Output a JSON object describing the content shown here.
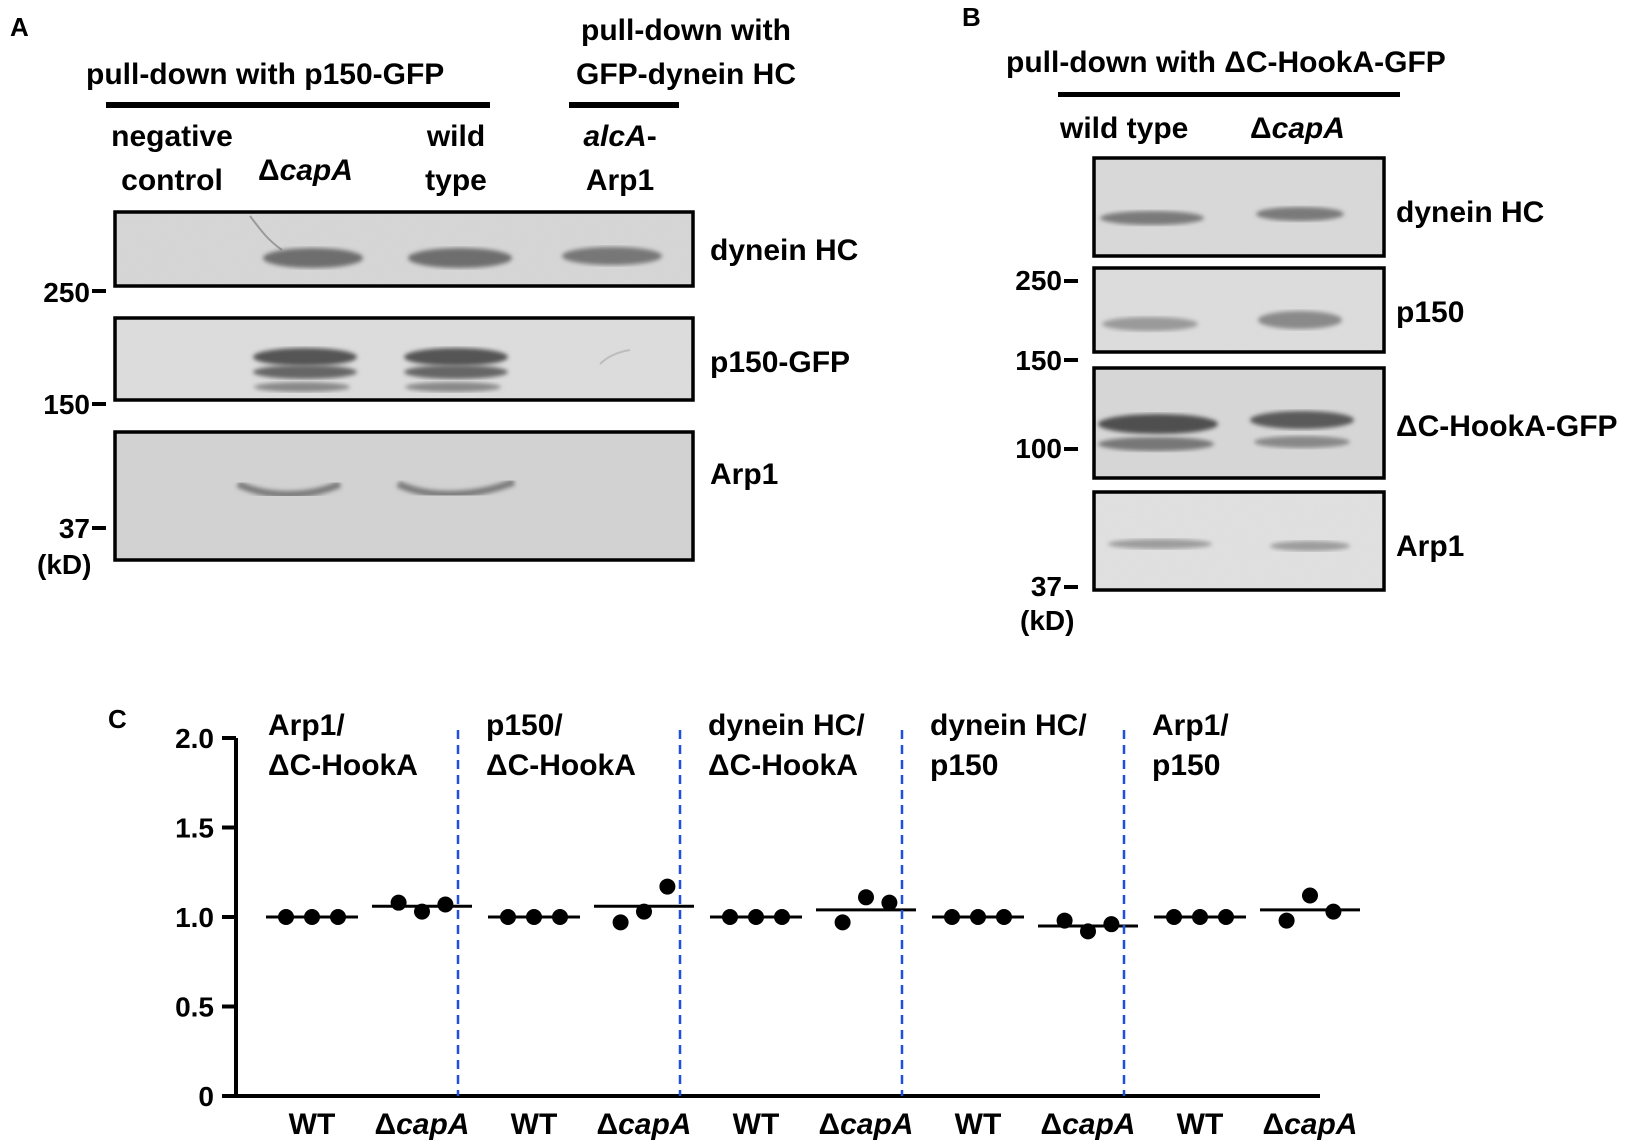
{
  "panel_a": {
    "letter": "A",
    "header_left": "pull-down with p150-GFP",
    "header_right_l1": "pull-down with",
    "header_right_l2": "GFP-dynein HC",
    "lanes": [
      {
        "l1": "negative",
        "l2": "control",
        "italic": false
      },
      {
        "prefix": "Δ",
        "name": "capA",
        "italic": true
      },
      {
        "l1": "wild",
        "l2": "type",
        "italic": false
      },
      {
        "l1": "alcA",
        "l1_suffix": "-",
        "l2": "Arp1",
        "italic": true
      }
    ],
    "blot_labels": [
      "dynein HC",
      "p150-GFP",
      "Arp1"
    ],
    "markers": [
      "250",
      "150",
      "37"
    ],
    "unit": "(kD)"
  },
  "panel_b": {
    "letter": "B",
    "header": "pull-down with ΔC-HookA-GFP",
    "lane_wt": "wild type",
    "lane_mut_prefix": "Δ",
    "lane_mut": "capA",
    "blot_labels": [
      "dynein HC",
      "p150",
      "ΔC-HookA-GFP",
      "Arp1"
    ],
    "markers": [
      "250",
      "150",
      "100",
      "37"
    ],
    "unit": "(kD)"
  },
  "panel_c": {
    "letter": "C"
  },
  "chart_data": {
    "type": "scatter",
    "ylim": [
      0,
      2.0
    ],
    "yticks": [
      "0",
      "0.5",
      "1.0",
      "1.5",
      "2.0"
    ],
    "groups": [
      {
        "label_l1": "Arp1/",
        "label_l2": "ΔC-HookA",
        "wt": [
          1.0,
          1.0,
          1.0
        ],
        "wt_mean": 1.0,
        "mut": [
          1.08,
          1.03,
          1.07
        ],
        "mut_mean": 1.06
      },
      {
        "label_l1": "p150/",
        "label_l2": "ΔC-HookA",
        "wt": [
          1.0,
          1.0,
          1.0
        ],
        "wt_mean": 1.0,
        "mut": [
          0.97,
          1.03,
          1.17
        ],
        "mut_mean": 1.06
      },
      {
        "label_l1": "dynein HC/",
        "label_l2": "ΔC-HookA",
        "wt": [
          1.0,
          1.0,
          1.0
        ],
        "wt_mean": 1.0,
        "mut": [
          0.97,
          1.11,
          1.08
        ],
        "mut_mean": 1.04
      },
      {
        "label_l1": "dynein HC/",
        "label_l2": "p150",
        "wt": [
          1.0,
          1.0,
          1.0
        ],
        "wt_mean": 1.0,
        "mut": [
          0.98,
          0.92,
          0.96
        ],
        "mut_mean": 0.95
      },
      {
        "label_l1": "Arp1/",
        "label_l2": "p150",
        "wt": [
          1.0,
          1.0,
          1.0
        ],
        "wt_mean": 1.0,
        "mut": [
          0.98,
          1.12,
          1.03
        ],
        "mut_mean": 1.04
      }
    ],
    "xlabels": {
      "wt": "WT",
      "mut_prefix": "Δ",
      "mut": "capA"
    },
    "separator_color": "#1f4fe0"
  }
}
